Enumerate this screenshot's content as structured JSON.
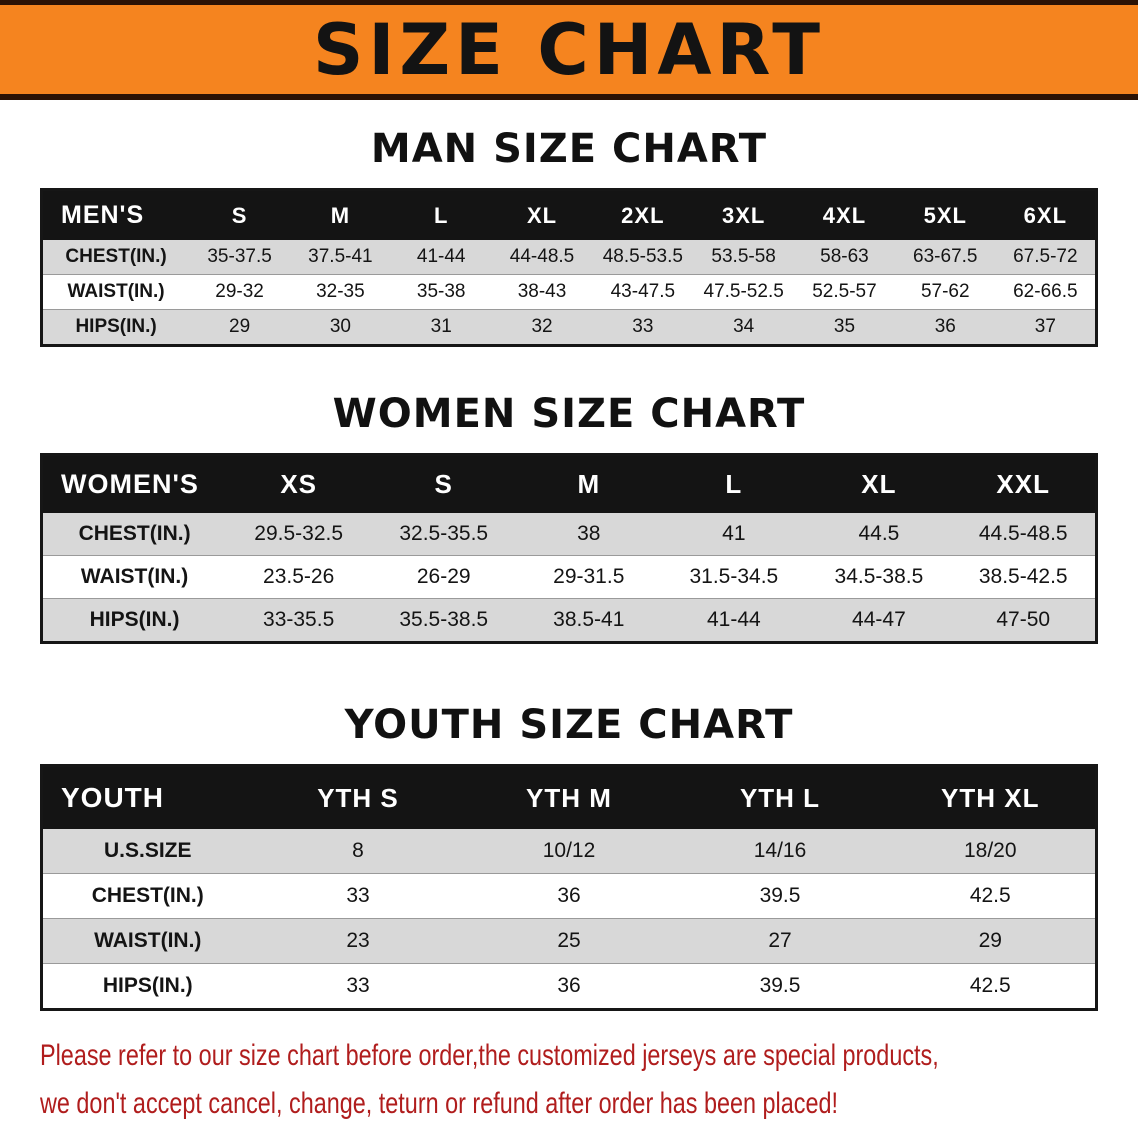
{
  "banner": {
    "title": "SIZE CHART",
    "bg_color": "#f5841f"
  },
  "sections": [
    {
      "id": "men",
      "heading": "MAN SIZE CHART",
      "table": {
        "header": [
          "MEN'S",
          "S",
          "M",
          "L",
          "XL",
          "2XL",
          "3XL",
          "4XL",
          "5XL",
          "6XL"
        ],
        "rows": [
          [
            "CHEST(IN.)",
            "35-37.5",
            "37.5-41",
            "41-44",
            "44-48.5",
            "48.5-53.5",
            "53.5-58",
            "58-63",
            "63-67.5",
            "67.5-72"
          ],
          [
            "WAIST(IN.)",
            "29-32",
            "32-35",
            "35-38",
            "38-43",
            "43-47.5",
            "47.5-52.5",
            "52.5-57",
            "57-62",
            "62-66.5"
          ],
          [
            "HIPS(IN.)",
            "29",
            "30",
            "31",
            "32",
            "33",
            "34",
            "35",
            "36",
            "37"
          ]
        ]
      }
    },
    {
      "id": "women",
      "heading": "WOMEN SIZE CHART",
      "table": {
        "header": [
          "WOMEN'S",
          "XS",
          "S",
          "M",
          "L",
          "XL",
          "XXL"
        ],
        "rows": [
          [
            "CHEST(IN.)",
            "29.5-32.5",
            "32.5-35.5",
            "38",
            "41",
            "44.5",
            "44.5-48.5"
          ],
          [
            "WAIST(IN.)",
            "23.5-26",
            "26-29",
            "29-31.5",
            "31.5-34.5",
            "34.5-38.5",
            "38.5-42.5"
          ],
          [
            "HIPS(IN.)",
            "33-35.5",
            "35.5-38.5",
            "38.5-41",
            "41-44",
            "44-47",
            "47-50"
          ]
        ]
      }
    },
    {
      "id": "youth",
      "heading": "YOUTH SIZE CHART",
      "table": {
        "header": [
          "YOUTH",
          "YTH S",
          "YTH M",
          "YTH L",
          "YTH XL"
        ],
        "rows": [
          [
            "U.S.SIZE",
            "8",
            "10/12",
            "14/16",
            "18/20"
          ],
          [
            "CHEST(IN.)",
            "33",
            "36",
            "39.5",
            "42.5"
          ],
          [
            "WAIST(IN.)",
            "23",
            "25",
            "27",
            "29"
          ],
          [
            "HIPS(IN.)",
            "33",
            "36",
            "39.5",
            "42.5"
          ]
        ]
      }
    }
  ],
  "footer": {
    "lines": [
      "Please refer to our size chart before order,the customized jerseys are special products,",
      "we don't accept cancel, change, teturn or refund after order has been placed!"
    ],
    "text_color": "#b01d1d"
  },
  "colors": {
    "banner_orange": "#f5841f",
    "banner_edge": "#2b1205",
    "header_black": "#141414",
    "stripe_gray": "#d8d8d8"
  }
}
